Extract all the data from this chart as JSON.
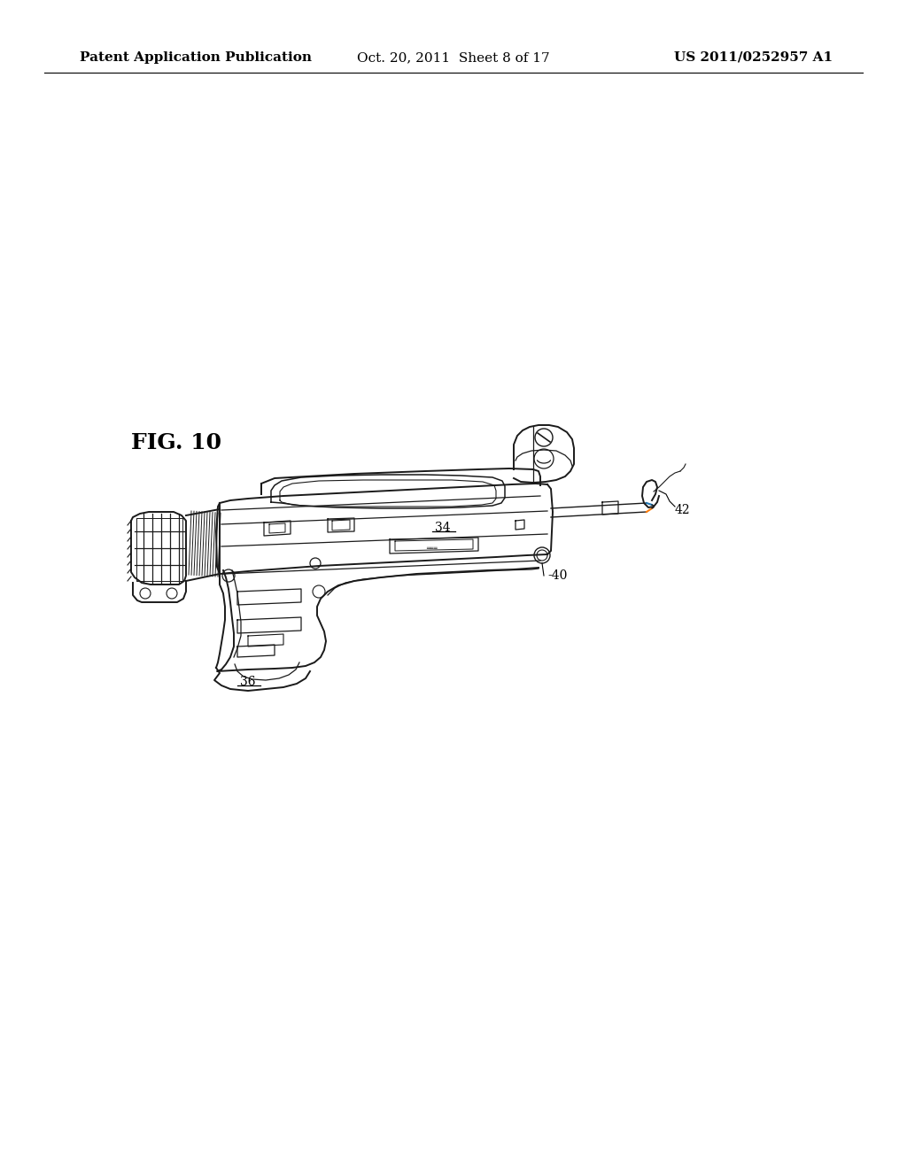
{
  "background_color": "#ffffff",
  "header_left": "Patent Application Publication",
  "header_center": "Oct. 20, 2011  Sheet 8 of 17",
  "header_right": "US 2011/0252957 A1",
  "header_fontsize": 11,
  "fig_label": "FIG. 10",
  "fig_label_fontsize": 18,
  "fig_label_fontweight": "bold",
  "line_color": "#1a1a1a",
  "line_width": 1.4
}
